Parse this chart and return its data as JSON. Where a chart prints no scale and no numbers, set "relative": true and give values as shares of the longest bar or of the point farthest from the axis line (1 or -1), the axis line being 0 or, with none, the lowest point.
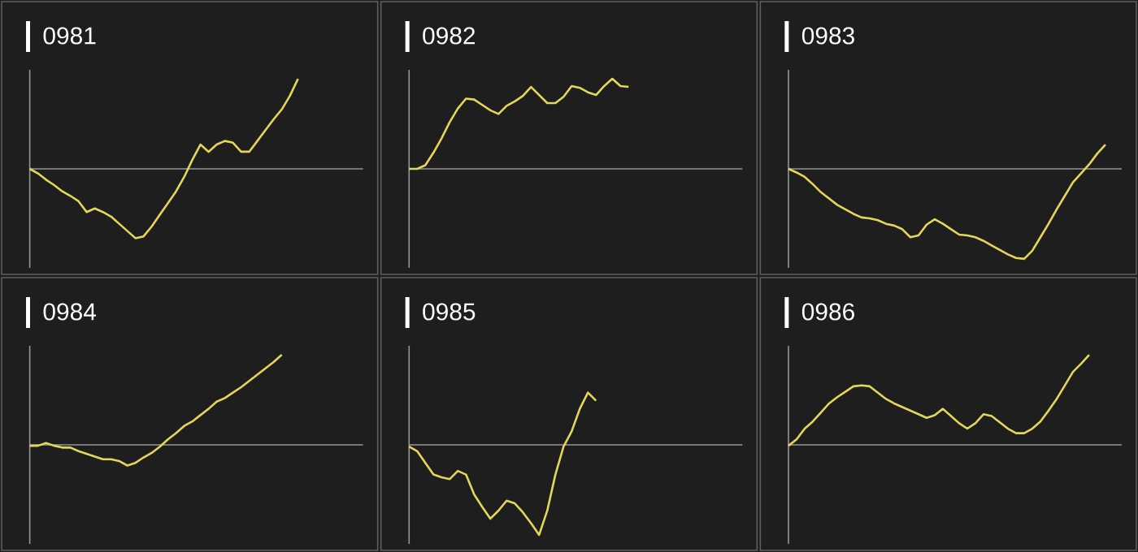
{
  "chart_data": [
    {
      "type": "line",
      "title": "0981",
      "relative": true,
      "color": "#e3d65b",
      "categories": [
        null,
        null,
        null,
        null,
        null,
        null,
        null,
        null,
        null,
        null,
        null,
        null,
        null,
        null,
        null,
        null,
        null,
        null,
        null,
        null,
        null,
        null,
        null,
        null,
        null,
        null,
        null,
        null,
        null,
        null,
        null,
        null,
        null,
        null,
        null,
        null,
        null,
        null,
        null,
        null,
        null,
        null
      ],
      "values": [
        0,
        -0.05,
        -0.12,
        -0.18,
        -0.25,
        -0.3,
        -0.36,
        -0.48,
        -0.44,
        -0.48,
        -0.53,
        -0.61,
        -0.69,
        -0.77,
        -0.75,
        -0.64,
        -0.51,
        -0.38,
        -0.25,
        -0.09,
        0.1,
        0.27,
        0.19,
        0.27,
        0.31,
        0.29,
        0.19,
        0.19,
        0.31,
        0.43,
        0.55,
        0.66,
        0.81,
        1.0,
        null,
        null,
        null,
        null,
        null,
        null,
        null,
        null
      ]
    },
    {
      "type": "line",
      "title": "0982",
      "relative": true,
      "color": "#e3d65b",
      "categories": [
        null,
        null,
        null,
        null,
        null,
        null,
        null,
        null,
        null,
        null,
        null,
        null,
        null,
        null,
        null,
        null,
        null,
        null,
        null,
        null,
        null,
        null,
        null,
        null,
        null,
        null,
        null,
        null,
        null,
        null,
        null,
        null,
        null,
        null,
        null,
        null,
        null,
        null,
        null,
        null,
        null,
        null
      ],
      "values": [
        0,
        0,
        0.04,
        0.18,
        0.34,
        0.52,
        0.67,
        0.78,
        0.77,
        0.71,
        0.65,
        0.61,
        0.7,
        0.75,
        0.81,
        0.91,
        0.82,
        0.73,
        0.73,
        0.8,
        0.92,
        0.9,
        0.85,
        0.82,
        0.92,
        1.0,
        0.92,
        0.91,
        null,
        null,
        null,
        null,
        null,
        null,
        null,
        null,
        null,
        null,
        null,
        null,
        null,
        null
      ]
    },
    {
      "type": "line",
      "title": "0983",
      "relative": true,
      "color": "#e3d65b",
      "categories": [
        null,
        null,
        null,
        null,
        null,
        null,
        null,
        null,
        null,
        null,
        null,
        null,
        null,
        null,
        null,
        null,
        null,
        null,
        null,
        null,
        null,
        null,
        null,
        null,
        null,
        null,
        null,
        null,
        null,
        null,
        null,
        null,
        null,
        null,
        null,
        null,
        null,
        null,
        null,
        null,
        null,
        null
      ],
      "values": [
        0,
        -0.04,
        -0.09,
        -0.17,
        -0.26,
        -0.33,
        -0.4,
        -0.45,
        -0.5,
        -0.54,
        -0.55,
        -0.57,
        -0.61,
        -0.63,
        -0.67,
        -0.76,
        -0.74,
        -0.62,
        -0.56,
        -0.61,
        -0.67,
        -0.73,
        -0.74,
        -0.76,
        -0.8,
        -0.85,
        -0.9,
        -0.95,
        -0.99,
        -1.0,
        -0.91,
        -0.76,
        -0.61,
        -0.45,
        -0.3,
        -0.15,
        -0.05,
        0.05,
        0.17,
        0.27,
        null,
        null
      ]
    },
    {
      "type": "line",
      "title": "0984",
      "relative": true,
      "color": "#e3d65b",
      "categories": [
        null,
        null,
        null,
        null,
        null,
        null,
        null,
        null,
        null,
        null,
        null,
        null,
        null,
        null,
        null,
        null,
        null,
        null,
        null,
        null,
        null,
        null,
        null,
        null,
        null,
        null,
        null,
        null,
        null,
        null,
        null,
        null,
        null,
        null,
        null,
        null,
        null,
        null,
        null,
        null,
        null,
        null
      ],
      "values": [
        -0.01,
        -0.01,
        0.02,
        -0.01,
        -0.03,
        -0.03,
        -0.07,
        -0.1,
        -0.13,
        -0.16,
        -0.16,
        -0.18,
        -0.23,
        -0.2,
        -0.14,
        -0.09,
        -0.02,
        0.06,
        0.13,
        0.21,
        0.26,
        0.33,
        0.4,
        0.48,
        0.52,
        0.58,
        0.64,
        0.71,
        0.78,
        0.85,
        0.92,
        1.0,
        null,
        null,
        null,
        null,
        null,
        null,
        null,
        null,
        null,
        null
      ]
    },
    {
      "type": "line",
      "title": "0985",
      "relative": true,
      "color": "#e3d65b",
      "categories": [
        null,
        null,
        null,
        null,
        null,
        null,
        null,
        null,
        null,
        null,
        null,
        null,
        null,
        null,
        null,
        null,
        null,
        null,
        null,
        null,
        null,
        null,
        null,
        null,
        null,
        null,
        null,
        null,
        null,
        null,
        null,
        null,
        null,
        null,
        null,
        null,
        null,
        null,
        null,
        null,
        null,
        null
      ],
      "values": [
        -0.02,
        -0.07,
        -0.2,
        -0.33,
        -0.36,
        -0.38,
        -0.29,
        -0.33,
        -0.55,
        -0.69,
        -0.82,
        -0.73,
        -0.62,
        -0.65,
        -0.75,
        -0.87,
        -1.0,
        -0.73,
        -0.33,
        -0.02,
        0.15,
        0.4,
        0.58,
        0.49,
        null,
        null,
        null,
        null,
        null,
        null,
        null,
        null,
        null,
        null,
        null,
        null,
        null,
        null,
        null,
        null,
        null,
        null
      ]
    },
    {
      "type": "line",
      "title": "0986",
      "relative": true,
      "color": "#e3d65b",
      "categories": [
        null,
        null,
        null,
        null,
        null,
        null,
        null,
        null,
        null,
        null,
        null,
        null,
        null,
        null,
        null,
        null,
        null,
        null,
        null,
        null,
        null,
        null,
        null,
        null,
        null,
        null,
        null,
        null,
        null,
        null,
        null,
        null,
        null,
        null,
        null,
        null,
        null,
        null,
        null,
        null,
        null,
        null
      ],
      "values": [
        -0.01,
        0.06,
        0.18,
        0.26,
        0.36,
        0.46,
        0.53,
        0.59,
        0.65,
        0.66,
        0.65,
        0.58,
        0.51,
        0.46,
        0.42,
        0.38,
        0.34,
        0.3,
        0.33,
        0.4,
        0.32,
        0.24,
        0.18,
        0.24,
        0.34,
        0.32,
        0.25,
        0.18,
        0.13,
        0.13,
        0.18,
        0.26,
        0.38,
        0.51,
        0.66,
        0.81,
        0.9,
        1.0,
        null,
        null,
        null,
        null
      ]
    }
  ]
}
